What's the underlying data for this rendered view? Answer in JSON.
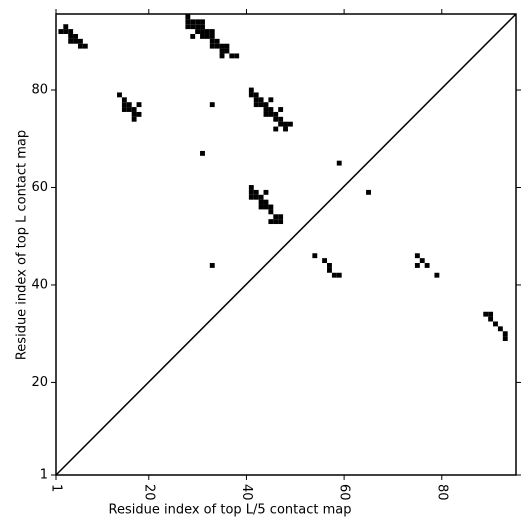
{
  "chart_data": {
    "type": "scatter",
    "xlabel": "Residue index of top L/5 contact map",
    "ylabel": "Residue index of top L contact map",
    "color": "#000000",
    "xlim": [
      1,
      95.2
    ],
    "ylim": [
      1,
      95.6
    ],
    "xticks": [
      1,
      20,
      40,
      60,
      80
    ],
    "yticks": [
      1,
      20,
      40,
      60,
      80
    ],
    "x": [
      2,
      3,
      3,
      4,
      4,
      4,
      5,
      5,
      6,
      6,
      7,
      28,
      28,
      29,
      30,
      31,
      28,
      29,
      30,
      31,
      30,
      31,
      32,
      33,
      31,
      32,
      33,
      29,
      33,
      34,
      33,
      34,
      35,
      36,
      35,
      36,
      35,
      37,
      38,
      14,
      15,
      15,
      16,
      15,
      16,
      17,
      18,
      17,
      18,
      17,
      33,
      31,
      41,
      41,
      42,
      42,
      43,
      42,
      43,
      44,
      45,
      44,
      45,
      44,
      45,
      46,
      47,
      46,
      47,
      47,
      48,
      49,
      46,
      48,
      41,
      41,
      42,
      41,
      42,
      43,
      44,
      43,
      44,
      43,
      44,
      45,
      45,
      46,
      47,
      46,
      47,
      45,
      33,
      59,
      65,
      54,
      56,
      57,
      57,
      58,
      59,
      75,
      76,
      75,
      77,
      79,
      89,
      90,
      90,
      91,
      92,
      93,
      93
    ],
    "values": [
      92,
      92,
      93,
      91,
      92,
      90,
      90,
      91,
      89,
      90,
      89,
      95,
      94,
      94,
      94,
      94,
      93,
      93,
      93,
      93,
      92,
      92,
      92,
      92,
      91,
      91,
      91,
      91,
      90,
      90,
      89,
      89,
      89,
      89,
      88,
      88,
      87,
      87,
      87,
      79,
      78,
      77,
      77,
      76,
      76,
      76,
      77,
      75,
      75,
      74,
      77,
      67,
      80,
      79,
      79,
      78,
      78,
      77,
      77,
      77,
      78,
      76,
      76,
      75,
      75,
      75,
      76,
      74,
      74,
      73,
      73,
      73,
      72,
      72,
      60,
      59,
      59,
      58,
      58,
      58,
      59,
      57,
      57,
      56,
      56,
      56,
      55,
      54,
      54,
      53,
      53,
      53,
      44,
      65,
      59,
      46,
      45,
      44,
      43,
      42,
      42,
      46,
      45,
      44,
      44,
      42,
      34,
      34,
      33,
      32,
      31,
      30,
      29
    ]
  }
}
